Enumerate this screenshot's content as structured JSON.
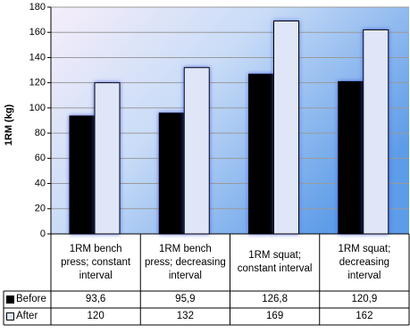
{
  "chart_data": {
    "type": "bar",
    "y_label": "1RM (kg)",
    "categories": [
      "1RM bench press; constant interval",
      "1RM bench press; decreasing interval",
      "1RM squat; constant interval",
      "1RM squat; decreasing interval"
    ],
    "series": [
      {
        "name": "Before",
        "color": "#000000",
        "values": [
          93.6,
          95.9,
          126.8,
          120.9
        ],
        "value_labels": [
          "93,6",
          "95,9",
          "126,8",
          "120,9"
        ]
      },
      {
        "name": "After",
        "color": "#dfe6f7",
        "values": [
          120,
          132,
          169,
          162
        ]
      }
    ],
    "ylim": [
      0,
      180
    ],
    "yticks": [
      0,
      20,
      40,
      60,
      80,
      100,
      120,
      140,
      160,
      180
    ],
    "grid": true
  }
}
